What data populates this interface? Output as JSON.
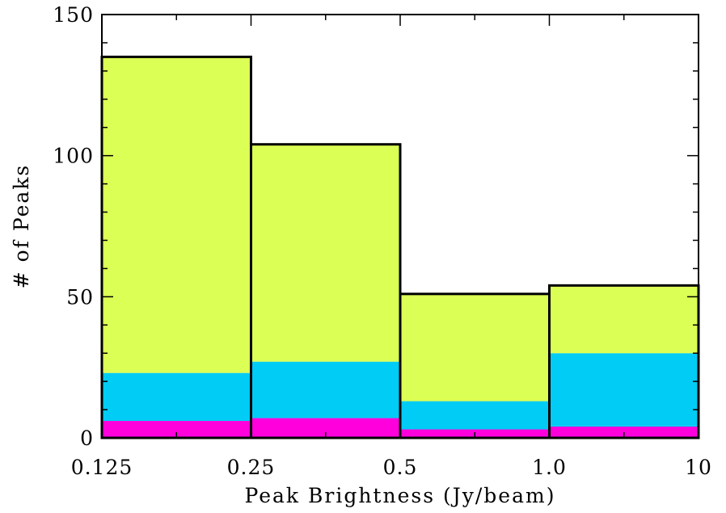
{
  "chart_data": {
    "type": "bar",
    "stacked": true,
    "xlabel": "Peak Brightness (Jy/beam)",
    "ylabel": "# of Peaks",
    "ylim": [
      0,
      150
    ],
    "y_ticks": [
      "0",
      "50",
      "100",
      "150"
    ],
    "x_tick_labels": [
      "0.125",
      "0.25",
      "0.5",
      "1.0",
      "10"
    ],
    "bin_edges": [
      0.125,
      0.25,
      0.5,
      1.0,
      10
    ],
    "series": [
      {
        "color": "#ff00dd",
        "values": [
          6,
          7,
          3,
          4
        ]
      },
      {
        "color": "#00ccf5",
        "values": [
          17,
          20,
          10,
          26
        ]
      },
      {
        "color": "#dcff55",
        "values": [
          112,
          77,
          38,
          24
        ]
      }
    ],
    "totals": [
      135,
      104,
      51,
      54
    ]
  }
}
